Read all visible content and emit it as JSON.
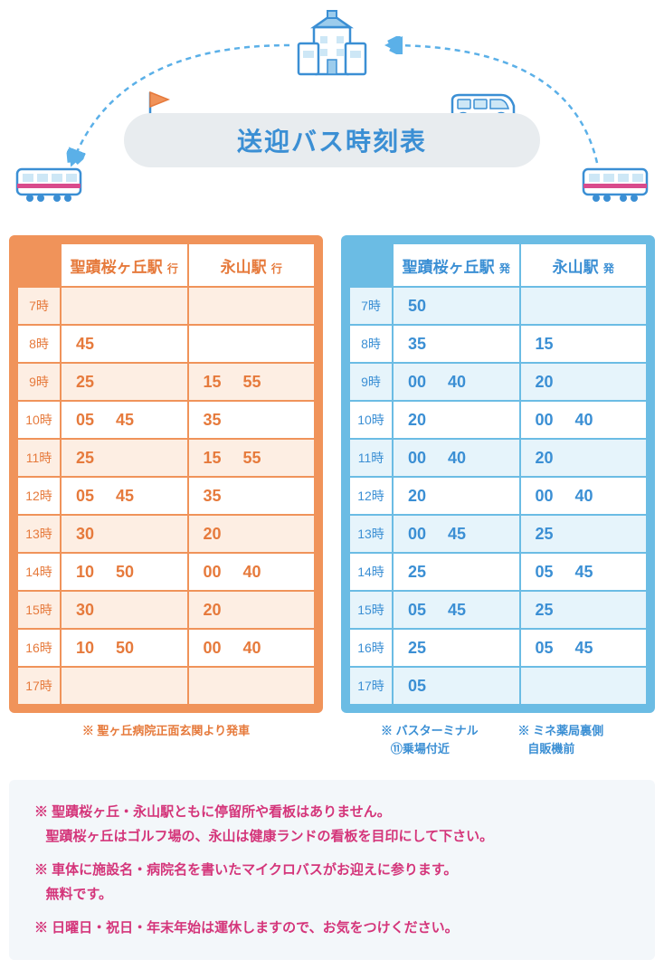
{
  "title": "送迎バス時刻表",
  "colors": {
    "orange": "#f0935a",
    "orange_text": "#e67a3c",
    "orange_alt_bg": "#fdeee3",
    "blue": "#6bbce4",
    "blue_text": "#3b8fd4",
    "blue_alt_bg": "#e6f4fb",
    "title_bg": "#e8ecef",
    "footer_bg": "#f3f7fa",
    "footer_text": "#d4357a",
    "arrow": "#5bb0e8"
  },
  "hours": [
    "7時",
    "8時",
    "9時",
    "10時",
    "11時",
    "12時",
    "13時",
    "14時",
    "15時",
    "16時",
    "17時"
  ],
  "left_table": {
    "columns": [
      {
        "name": "聖蹟桜ヶ丘駅",
        "suffix": "行"
      },
      {
        "name": "永山駅",
        "suffix": "行"
      }
    ],
    "rows": [
      [
        [],
        []
      ],
      [
        [
          "45"
        ],
        []
      ],
      [
        [
          "25"
        ],
        [
          "15",
          "55"
        ]
      ],
      [
        [
          "05",
          "45"
        ],
        [
          "35"
        ]
      ],
      [
        [
          "25"
        ],
        [
          "15",
          "55"
        ]
      ],
      [
        [
          "05",
          "45"
        ],
        [
          "35"
        ]
      ],
      [
        [
          "30"
        ],
        [
          "20"
        ]
      ],
      [
        [
          "10",
          "50"
        ],
        [
          "00",
          "40"
        ]
      ],
      [
        [
          "30"
        ],
        [
          "20"
        ]
      ],
      [
        [
          "10",
          "50"
        ],
        [
          "00",
          "40"
        ]
      ],
      [
        [],
        []
      ]
    ],
    "note": "※ 聖ヶ丘病院正面玄関より発車"
  },
  "right_table": {
    "columns": [
      {
        "name": "聖蹟桜ヶ丘駅",
        "suffix": "発"
      },
      {
        "name": "永山駅",
        "suffix": "発"
      }
    ],
    "rows": [
      [
        [
          "50"
        ],
        []
      ],
      [
        [
          "35"
        ],
        [
          "15"
        ]
      ],
      [
        [
          "00",
          "40"
        ],
        [
          "20"
        ]
      ],
      [
        [
          "20"
        ],
        [
          "00",
          "40"
        ]
      ],
      [
        [
          "00",
          "40"
        ],
        [
          "20"
        ]
      ],
      [
        [
          "20"
        ],
        [
          "00",
          "40"
        ]
      ],
      [
        [
          "00",
          "45"
        ],
        [
          "25"
        ]
      ],
      [
        [
          "25"
        ],
        [
          "05",
          "45"
        ]
      ],
      [
        [
          "05",
          "45"
        ],
        [
          "25"
        ]
      ],
      [
        [
          "25"
        ],
        [
          "05",
          "45"
        ]
      ],
      [
        [
          "05"
        ],
        []
      ]
    ],
    "note_col1_l1": "※ バスターミナル",
    "note_col1_l2": "⑪乗場付近",
    "note_col2_l1": "※ ミネ薬局裏側",
    "note_col2_l2": "自販機前"
  },
  "footer": {
    "p1": "※ 聖蹟桜ヶ丘・永山駅ともに停留所や看板はありません。",
    "p1b": "聖蹟桜ヶ丘はゴルフ場の、永山は健康ランドの看板を目印にして下さい。",
    "p2": "※ 車体に施設名・病院名を書いたマイクロバスがお迎えに参ります。",
    "p2b": "無料です。",
    "p3": "※ 日曜日・祝日・年末年始は運休しますので、お気をつけください。"
  }
}
